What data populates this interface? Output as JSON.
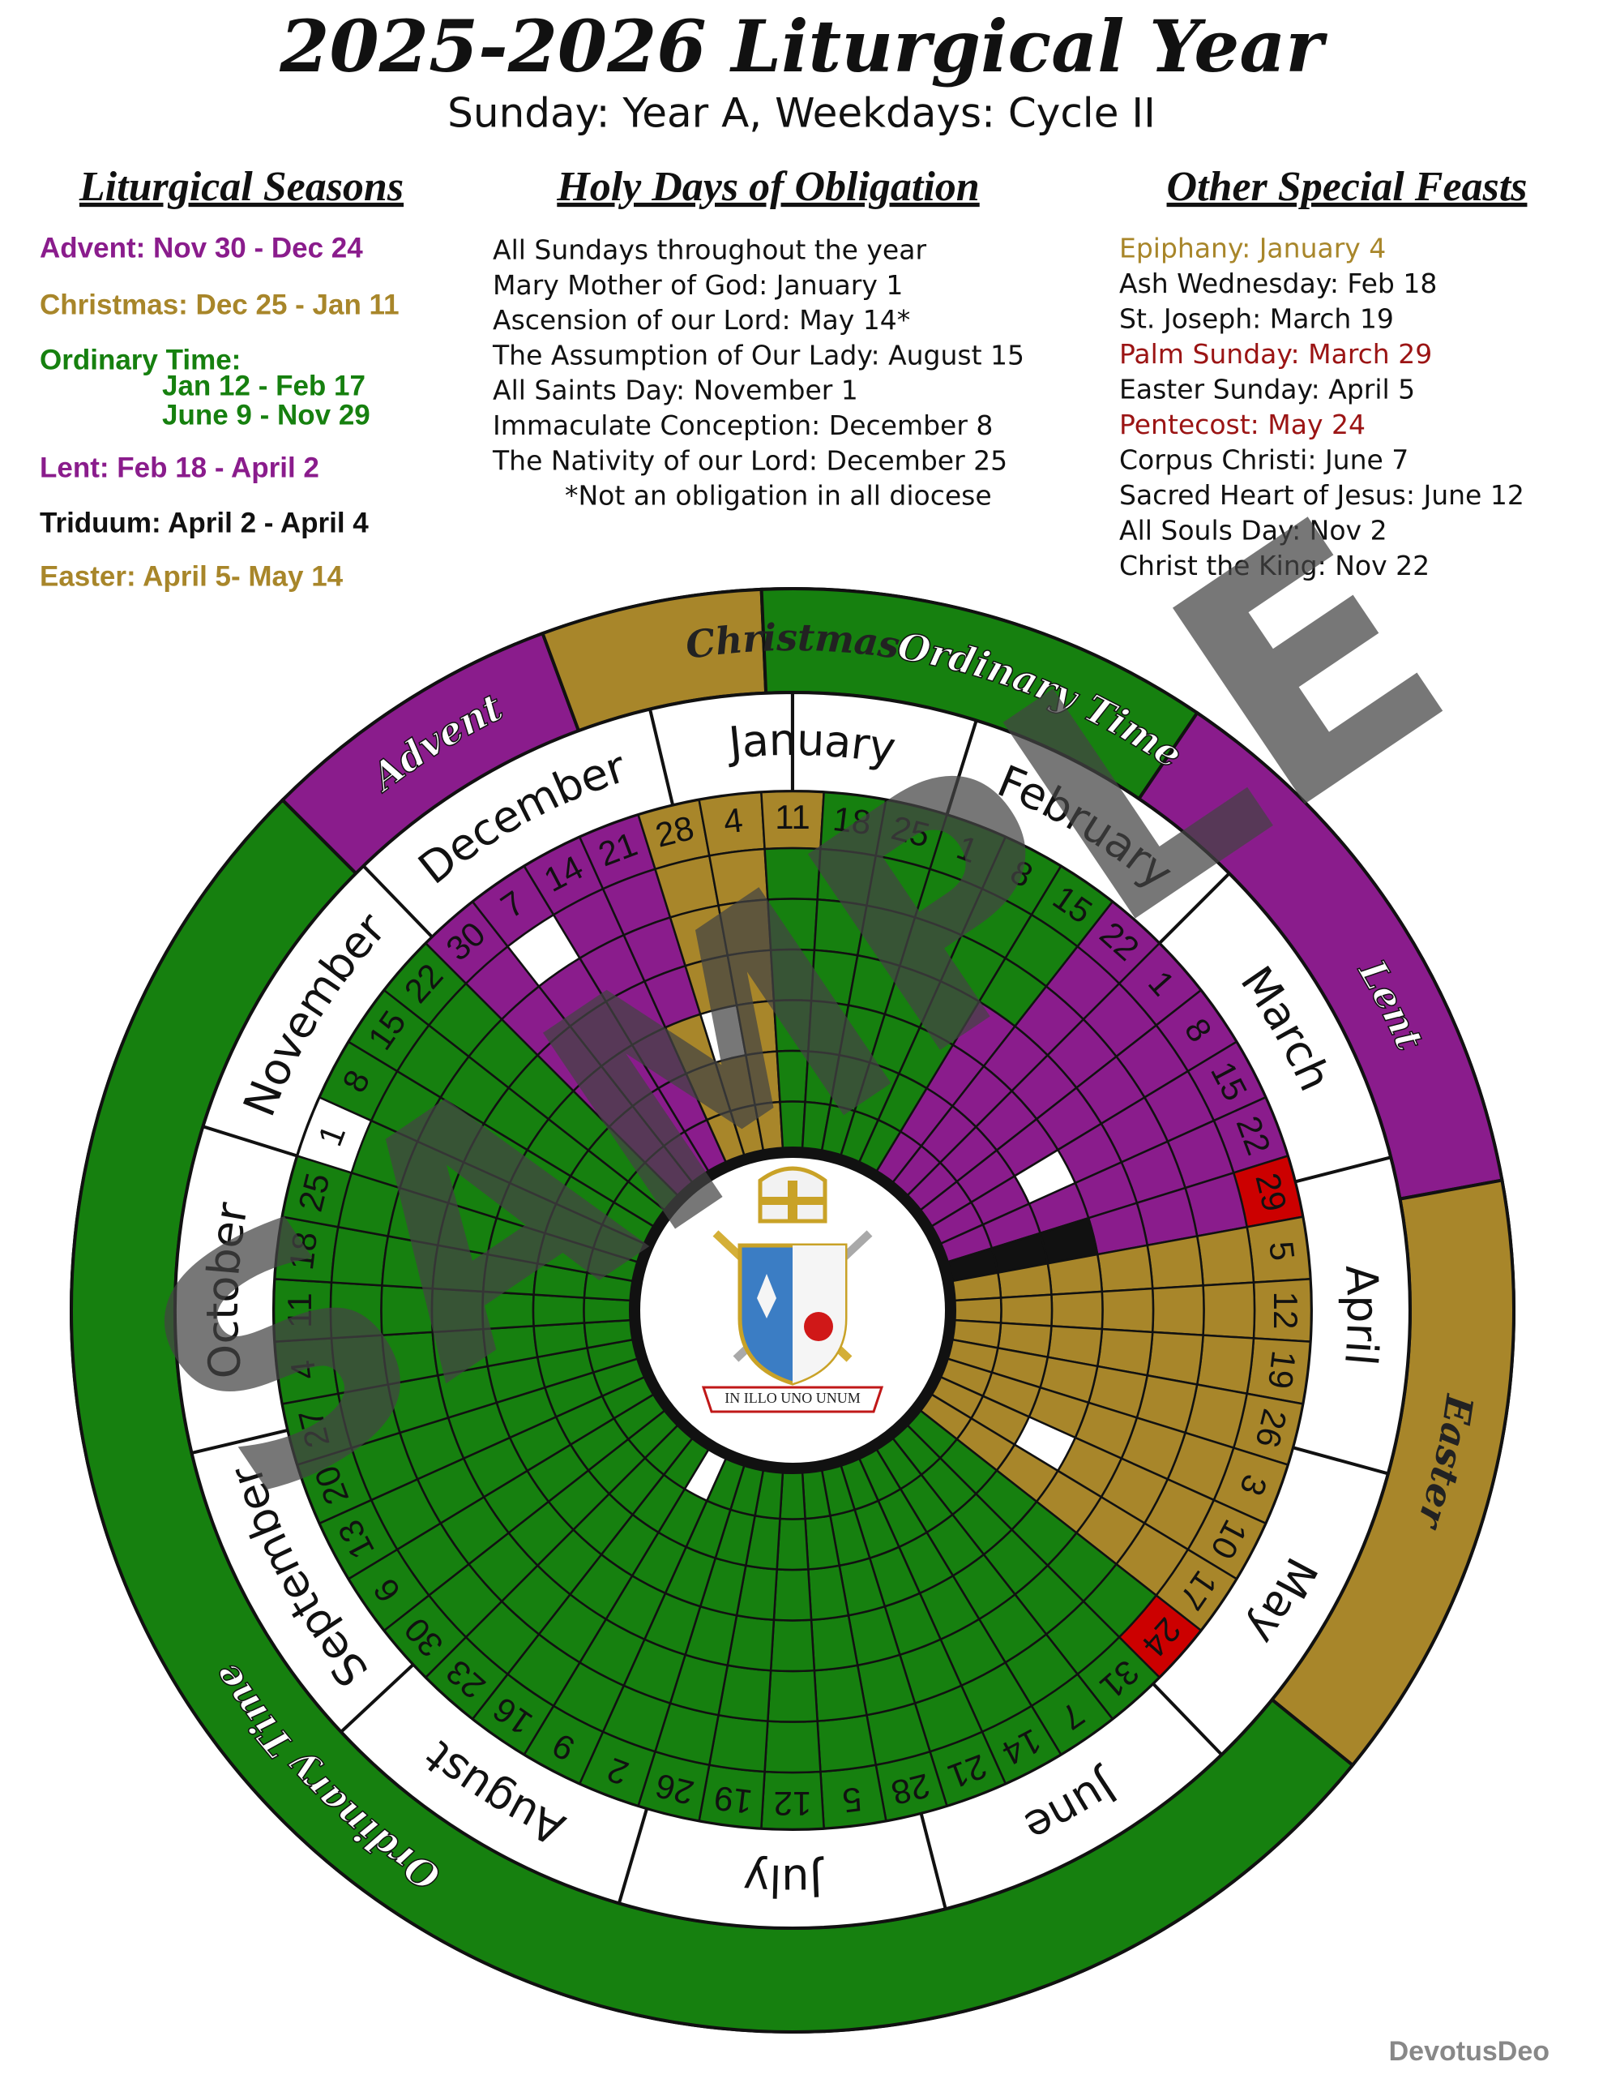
{
  "header": {
    "title": "2025-2026 Liturgical Year",
    "subtitle": "Sunday: Year A, Weekdays: Cycle II"
  },
  "columns": [
    {
      "heading": "Liturgical Seasons",
      "items": [
        "Advent: Nov 30 - Dec 24",
        "Christmas: Dec 25 - Jan 11",
        "Ordinary Time:",
        "Jan 12 - Feb 17",
        "June 9 - Nov 29",
        "Lent: Feb 18 - April 2",
        "Triduum: April 2 - April 4",
        "Easter: April 5- May 14"
      ]
    },
    {
      "heading": "Holy Days of Obligation",
      "items": [
        "All Sundays throughout the year",
        "Mary Mother of God: January 1",
        "Ascension of our Lord: May 14*",
        "The Assumption of Our Lady: August 15",
        "All Saints Day: November 1",
        "Immaculate Conception: December 8",
        "The Nativity of our Lord: December 25",
        "*Not an obligation in all diocese"
      ]
    },
    {
      "heading": "Other Special Feasts",
      "items": [
        "Epiphany: January 4",
        "Ash Wednesday: Feb 18",
        "St. Joseph: March 19",
        "Palm Sunday: March 29",
        "Easter Sunday: April 5",
        "Pentecost: May 24",
        "Corpus Christi: June 7",
        "Sacred Heart of Jesus: June 12",
        "All Souls Day: Nov 2",
        "Christ the King: Nov 22"
      ]
    }
  ],
  "wheel": {
    "seasons": [
      "Advent",
      "Christmas",
      "Ordinary Time",
      "Lent",
      "Easter",
      "Ordinary Time"
    ],
    "months": [
      "December",
      "January",
      "February",
      "March",
      "April",
      "May",
      "June",
      "July",
      "August",
      "September",
      "October",
      "November"
    ],
    "sundays": [
      30,
      7,
      14,
      21,
      28,
      4,
      11,
      18,
      25,
      1,
      8,
      15,
      22,
      1,
      8,
      15,
      22,
      29,
      5,
      12,
      19,
      26,
      3,
      10,
      17,
      24,
      31,
      7,
      14,
      21,
      28,
      5,
      12,
      19,
      26,
      2,
      9,
      16,
      23,
      30,
      6,
      13,
      20,
      27,
      4,
      11,
      18,
      25,
      1,
      8,
      15,
      22
    ],
    "motto": "IN ILLO UNO UNUM"
  },
  "watermark": "SAMPLE",
  "credit": "DevotusDeo"
}
